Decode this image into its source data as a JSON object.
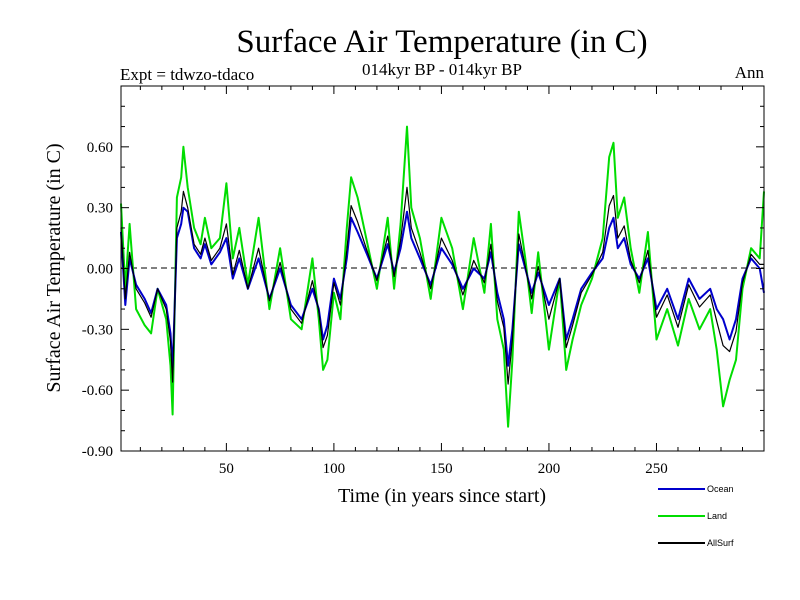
{
  "chart_data": {
    "type": "line",
    "title": "Surface Air Temperature (in C)",
    "subtitle": "014kyr BP - 014kyr BP",
    "expt_label": "Expt = tdwzo-tdaco",
    "period_label": "Ann",
    "xlabel": "Time (in years since start)",
    "ylabel": "Surface Air Temperature (in C)",
    "xlim": [
      1,
      300
    ],
    "ylim": [
      -0.9,
      0.9
    ],
    "x_ticks": [
      50,
      100,
      150,
      200,
      250
    ],
    "x_tick_labels": [
      "50",
      "100",
      "150",
      "200",
      "250"
    ],
    "y_ticks": [
      -0.9,
      -0.6,
      -0.3,
      0.0,
      0.3,
      0.6
    ],
    "y_tick_labels": [
      "-0.90",
      "-0.60",
      "-0.30",
      "0.00",
      "0.30",
      "0.60"
    ],
    "zero_line": "dashed",
    "grid": false,
    "legend_position": "bottom-right",
    "x_keyframes": [
      1,
      3,
      5,
      8,
      12,
      15,
      18,
      22,
      24,
      25,
      27,
      29,
      30,
      32,
      35,
      38,
      40,
      43,
      47,
      50,
      53,
      56,
      60,
      65,
      70,
      75,
      80,
      85,
      90,
      93,
      95,
      97,
      100,
      103,
      106,
      108,
      111,
      115,
      120,
      125,
      128,
      131,
      134,
      136,
      140,
      145,
      150,
      155,
      160,
      165,
      170,
      173,
      176,
      179,
      181,
      183,
      186,
      189,
      192,
      195,
      200,
      205,
      208,
      211,
      215,
      220,
      225,
      228,
      230,
      232,
      235,
      238,
      242,
      246,
      250,
      255,
      260,
      265,
      270,
      275,
      278,
      281,
      284,
      287,
      290,
      294,
      298,
      300
    ],
    "series": [
      {
        "name": "Ocean",
        "color": "#0000cc",
        "values": [
          0.18,
          -0.18,
          0.05,
          -0.08,
          -0.15,
          -0.22,
          -0.1,
          -0.18,
          -0.32,
          -0.5,
          0.15,
          0.22,
          0.3,
          0.28,
          0.1,
          0.05,
          0.12,
          0.02,
          0.08,
          0.15,
          -0.05,
          0.05,
          -0.1,
          0.05,
          -0.15,
          0.0,
          -0.18,
          -0.25,
          -0.1,
          -0.2,
          -0.35,
          -0.28,
          -0.05,
          -0.15,
          0.05,
          0.25,
          0.18,
          0.08,
          -0.05,
          0.12,
          -0.02,
          0.1,
          0.28,
          0.15,
          0.05,
          -0.08,
          0.1,
          0.02,
          -0.1,
          0.0,
          -0.05,
          0.08,
          -0.12,
          -0.25,
          -0.48,
          -0.3,
          0.12,
          0.0,
          -0.12,
          -0.02,
          -0.18,
          -0.05,
          -0.35,
          -0.25,
          -0.1,
          -0.02,
          0.05,
          0.2,
          0.25,
          0.1,
          0.15,
          0.02,
          -0.05,
          0.05,
          -0.2,
          -0.1,
          -0.25,
          -0.05,
          -0.15,
          -0.1,
          -0.2,
          -0.25,
          -0.35,
          -0.25,
          -0.05,
          0.05,
          0.0,
          -0.12
        ]
      },
      {
        "name": "Land",
        "color": "#00dd00",
        "values": [
          0.32,
          -0.1,
          0.22,
          -0.2,
          -0.28,
          -0.32,
          -0.1,
          -0.25,
          -0.48,
          -0.72,
          0.35,
          0.45,
          0.6,
          0.4,
          0.2,
          0.12,
          0.25,
          0.1,
          0.15,
          0.42,
          0.05,
          0.2,
          -0.08,
          0.25,
          -0.2,
          0.1,
          -0.25,
          -0.3,
          0.05,
          -0.25,
          -0.5,
          -0.45,
          -0.12,
          -0.25,
          0.2,
          0.45,
          0.35,
          0.15,
          -0.1,
          0.25,
          -0.1,
          0.22,
          0.7,
          0.3,
          0.15,
          -0.15,
          0.25,
          0.1,
          -0.2,
          0.15,
          -0.12,
          0.22,
          -0.25,
          -0.4,
          -0.78,
          -0.45,
          0.28,
          0.05,
          -0.22,
          0.08,
          -0.4,
          -0.05,
          -0.5,
          -0.35,
          -0.18,
          -0.05,
          0.15,
          0.55,
          0.62,
          0.25,
          0.35,
          0.1,
          -0.12,
          0.18,
          -0.35,
          -0.2,
          -0.38,
          -0.15,
          -0.3,
          -0.2,
          -0.4,
          -0.68,
          -0.55,
          -0.45,
          -0.1,
          0.1,
          0.05,
          0.38
        ]
      },
      {
        "name": "AllSurf",
        "color": "#000000",
        "values": [
          0.2,
          -0.15,
          0.08,
          -0.1,
          -0.17,
          -0.24,
          -0.1,
          -0.2,
          -0.36,
          -0.56,
          0.2,
          0.28,
          0.38,
          0.3,
          0.12,
          0.07,
          0.15,
          0.04,
          0.1,
          0.22,
          -0.03,
          0.09,
          -0.1,
          0.1,
          -0.16,
          0.03,
          -0.2,
          -0.27,
          -0.06,
          -0.21,
          -0.39,
          -0.33,
          -0.07,
          -0.18,
          0.09,
          0.31,
          0.23,
          0.1,
          -0.06,
          0.16,
          -0.04,
          0.14,
          0.4,
          0.2,
          0.08,
          -0.1,
          0.15,
          0.04,
          -0.13,
          0.04,
          -0.07,
          0.12,
          -0.16,
          -0.29,
          -0.57,
          -0.35,
          0.17,
          0.01,
          -0.15,
          0.01,
          -0.25,
          -0.05,
          -0.39,
          -0.28,
          -0.12,
          -0.03,
          0.08,
          0.31,
          0.36,
          0.15,
          0.21,
          0.04,
          -0.07,
          0.09,
          -0.24,
          -0.13,
          -0.29,
          -0.08,
          -0.19,
          -0.13,
          -0.26,
          -0.38,
          -0.41,
          -0.31,
          -0.07,
          0.07,
          0.02,
          0.02
        ]
      }
    ]
  }
}
